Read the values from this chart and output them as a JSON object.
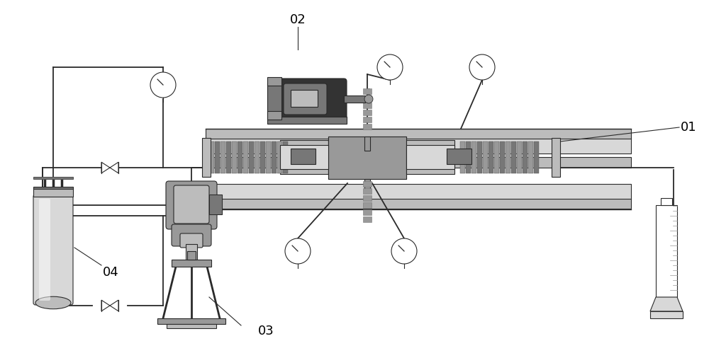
{
  "bg_color": "#ffffff",
  "lc": "#2a2a2a",
  "g1": "#eeeeee",
  "g2": "#d8d8d8",
  "g3": "#bcbcbc",
  "g4": "#999999",
  "g5": "#777777",
  "g6": "#555555",
  "g7": "#333333",
  "label_fontsize": 13,
  "figsize": [
    10.0,
    4.99
  ],
  "dpi": 100,
  "xlim": [
    0,
    1000
  ],
  "ylim": [
    0,
    499
  ]
}
